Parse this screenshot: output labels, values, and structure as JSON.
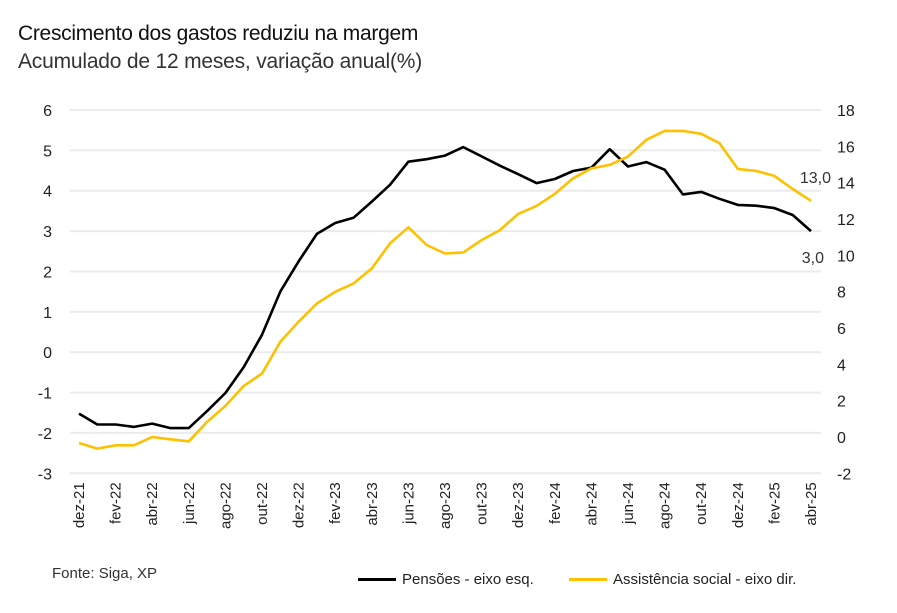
{
  "title": "Crescimento dos gastos reduziu na margem",
  "subtitle": "Acumulado de 12 meses, variação anual(%)",
  "source": "Fonte: Siga, XP",
  "colors": {
    "pensoes": "#000000",
    "assistencia": "#FFC000",
    "grid": "#EBEBEB"
  },
  "chart_data": {
    "type": "line",
    "title": "Crescimento dos gastos reduziu na margem",
    "subtitle": "Acumulado de 12 meses, variação anual(%)",
    "x": [
      "dez-21",
      "jan-22",
      "fev-22",
      "mar-22",
      "abr-22",
      "mai-22",
      "jun-22",
      "jul-22",
      "ago-22",
      "set-22",
      "out-22",
      "nov-22",
      "dez-22",
      "jan-23",
      "fev-23",
      "mar-23",
      "abr-23",
      "mai-23",
      "jun-23",
      "jul-23",
      "ago-23",
      "set-23",
      "out-23",
      "nov-23",
      "dez-23",
      "jan-24",
      "fev-24",
      "mar-24",
      "abr-24",
      "mai-24",
      "jun-24",
      "jul-24",
      "ago-24",
      "set-24",
      "out-24",
      "nov-24",
      "dez-24",
      "jan-25",
      "fev-25",
      "mar-25",
      "abr-25"
    ],
    "tick_labels": [
      "dez-21",
      "fev-22",
      "abr-22",
      "jun-22",
      "ago-22",
      "out-22",
      "dez-22",
      "fev-23",
      "abr-23",
      "jun-23",
      "ago-23",
      "out-23",
      "dez-23",
      "fev-24",
      "abr-24",
      "jun-24",
      "ago-24",
      "out-24",
      "dez-24",
      "fev-25",
      "abr-25"
    ],
    "y_left": {
      "ylim": [
        -3,
        6
      ],
      "ticks": [
        "6",
        "5",
        "4",
        "3",
        "2",
        "1",
        "0",
        "-1",
        "-2",
        "-3"
      ],
      "tick_values": [
        6,
        5,
        4,
        3,
        2,
        1,
        0,
        -1,
        -2,
        -3
      ]
    },
    "y_right": {
      "ylim": [
        -2,
        18
      ],
      "ticks": [
        "18",
        "16",
        "14",
        "12",
        "10",
        "8",
        "6",
        "4",
        "2",
        "0",
        "-2"
      ],
      "tick_values": [
        18,
        16,
        14,
        12,
        10,
        8,
        6,
        4,
        2,
        0,
        -2
      ]
    },
    "grid": true,
    "legend_position": "bottom-right",
    "series": [
      {
        "name": "Pensões - eixo esq.",
        "axis": "left",
        "color": "#000000",
        "values": [
          -1.52,
          -1.79,
          -1.79,
          -1.85,
          -1.77,
          -1.88,
          -1.88,
          -1.46,
          -1.01,
          -0.37,
          0.43,
          1.5,
          2.25,
          2.93,
          3.2,
          3.33,
          3.73,
          4.15,
          4.72,
          4.78,
          4.87,
          5.08,
          4.85,
          4.62,
          4.41,
          4.19,
          4.29,
          4.49,
          4.57,
          5.03,
          4.6,
          4.71,
          4.52,
          3.91,
          3.97,
          3.8,
          3.65,
          3.63,
          3.57,
          3.4,
          3.0
        ],
        "end_label": "3,0"
      },
      {
        "name": "Assistência social - eixo dir.",
        "axis": "right",
        "color": "#FFC000",
        "values": [
          -0.33,
          -0.64,
          -0.46,
          -0.46,
          0.0,
          -0.13,
          -0.24,
          0.83,
          1.71,
          2.81,
          3.49,
          5.24,
          6.34,
          7.35,
          7.99,
          8.45,
          9.28,
          10.66,
          11.54,
          10.57,
          10.1,
          10.16,
          10.84,
          11.39,
          12.28,
          12.72,
          13.38,
          14.24,
          14.79,
          14.98,
          15.44,
          16.36,
          16.85,
          16.85,
          16.69,
          16.17,
          14.76,
          14.65,
          14.37,
          13.65,
          13.0
        ],
        "end_label": "13,0"
      }
    ]
  }
}
